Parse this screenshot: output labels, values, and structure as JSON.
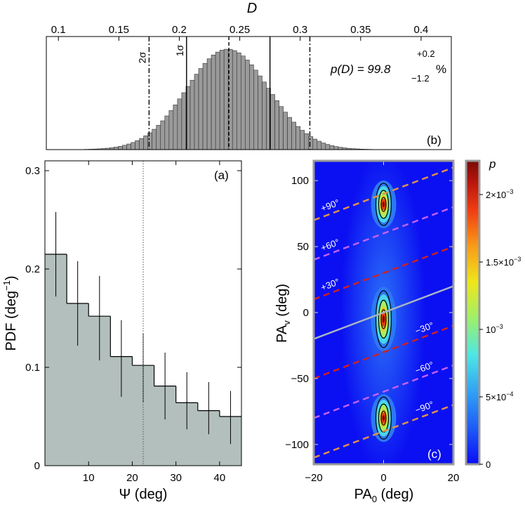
{
  "chart_data": [
    {
      "panel": "b",
      "type": "bar",
      "panel_label": "(b)",
      "xlabel": "D",
      "xlim": [
        0.09,
        0.425
      ],
      "xticks": [
        0.1,
        0.15,
        0.2,
        0.25,
        0.3,
        0.35,
        0.4
      ],
      "xtick_labels": [
        "0.1",
        "0.15",
        "0.2",
        "0.25",
        "0.3",
        "0.35",
        "0.4"
      ],
      "histogram": {
        "mean": 0.24,
        "sigma": 0.034,
        "bin_width": 0.0035,
        "x_start": 0.09,
        "x_end": 0.425,
        "peak_height": 1.0
      },
      "vlines": [
        {
          "x": 0.175,
          "style": "dashdot",
          "label": "2σ"
        },
        {
          "x": 0.206,
          "style": "solid",
          "label": "1σ"
        },
        {
          "x": 0.241,
          "style": "dashed",
          "label": ""
        },
        {
          "x": 0.275,
          "style": "solid",
          "label": ""
        },
        {
          "x": 0.308,
          "style": "dashdot",
          "label": ""
        }
      ],
      "annotation": {
        "prefix": "p(D) = 99.8",
        "sup": "+0.2",
        "sub": "−1.2",
        "suffix": "%"
      }
    },
    {
      "panel": "a",
      "type": "bar",
      "panel_label": "(a)",
      "xlabel": "Ψ (deg)",
      "ylabel_main": "PDF (deg",
      "ylabel_sup": "−1",
      "ylabel_end": ")",
      "xlim": [
        0,
        45
      ],
      "ylim": [
        0,
        0.31
      ],
      "xticks": [
        10,
        20,
        30,
        40
      ],
      "xtick_labels": [
        "10",
        "20",
        "30",
        "40"
      ],
      "yticks": [
        0,
        0.1,
        0.2,
        0.3
      ],
      "ytick_labels": [
        "0",
        "0.1",
        "0.2",
        "0.3"
      ],
      "bin_edges": [
        0,
        5,
        10,
        15,
        20,
        25,
        30,
        35,
        40,
        45
      ],
      "values": [
        0.215,
        0.165,
        0.152,
        0.111,
        0.102,
        0.081,
        0.064,
        0.056,
        0.05
      ],
      "errors_low": [
        0.172,
        0.122,
        0.107,
        0.07,
        0.064,
        0.047,
        0.037,
        0.032,
        0.022
      ],
      "errors_high": [
        0.258,
        0.208,
        0.193,
        0.148,
        0.135,
        0.115,
        0.095,
        0.085,
        0.076
      ],
      "dotted_vline_x": 22.5
    },
    {
      "panel": "c",
      "type": "heatmap",
      "panel_label": "(c)",
      "xlabel_main": "PA",
      "xlabel_sub": "0",
      "xlabel_end": " (deg)",
      "ylabel_main": "PA",
      "ylabel_sub": "v",
      "ylabel_end": " (deg)",
      "xlim": [
        -20,
        20
      ],
      "ylim": [
        -115,
        115
      ],
      "xticks": [
        -20,
        0,
        20
      ],
      "xtick_labels": [
        "−20",
        "0",
        "20"
      ],
      "yticks": [
        -100,
        -50,
        0,
        50,
        100
      ],
      "ytick_labels": [
        "−100",
        "−50",
        "0",
        "50",
        "100"
      ],
      "peaks": [
        {
          "x": 0,
          "y": 82,
          "label": "upper"
        },
        {
          "x": 0,
          "y": -5,
          "label": "middle"
        },
        {
          "x": 0,
          "y": -80,
          "label": "lower"
        }
      ],
      "lines": [
        {
          "label": "+90°",
          "intercept": 90,
          "color": "#e0904a"
        },
        {
          "label": "+60°",
          "intercept": 60,
          "color": "#c060f0"
        },
        {
          "label": "+30°",
          "intercept": 30,
          "color": "#d02020"
        },
        {
          "label": "",
          "intercept": 0,
          "color": "#a9b4c2"
        },
        {
          "label": "−30°",
          "intercept": -30,
          "color": "#d02020"
        },
        {
          "label": "−60°",
          "intercept": -60,
          "color": "#c060f0"
        },
        {
          "label": "−90°",
          "intercept": -90,
          "color": "#e0904a"
        }
      ],
      "line_slope": 1,
      "colorbar": {
        "label": "p",
        "range": [
          0,
          0.00225
        ],
        "ticks": [
          0,
          0.0005,
          0.001,
          0.0015,
          0.002
        ],
        "tick_labels": [
          {
            "main": "0",
            "base": "",
            "exp": ""
          },
          {
            "main": "5×10",
            "base": "",
            "exp": "−4"
          },
          {
            "main": "10",
            "base": "",
            "exp": "−3"
          },
          {
            "main": "1.5×10",
            "base": "",
            "exp": "−3"
          },
          {
            "main": "2×10",
            "base": "",
            "exp": "−3"
          }
        ],
        "colors": [
          "#0a0cf5",
          "#1e5cf6",
          "#31a2f4",
          "#4ee6e4",
          "#9df06a",
          "#efe61a",
          "#f89a18",
          "#ef3b13",
          "#b8160c",
          "#7a0a07"
        ]
      }
    }
  ]
}
